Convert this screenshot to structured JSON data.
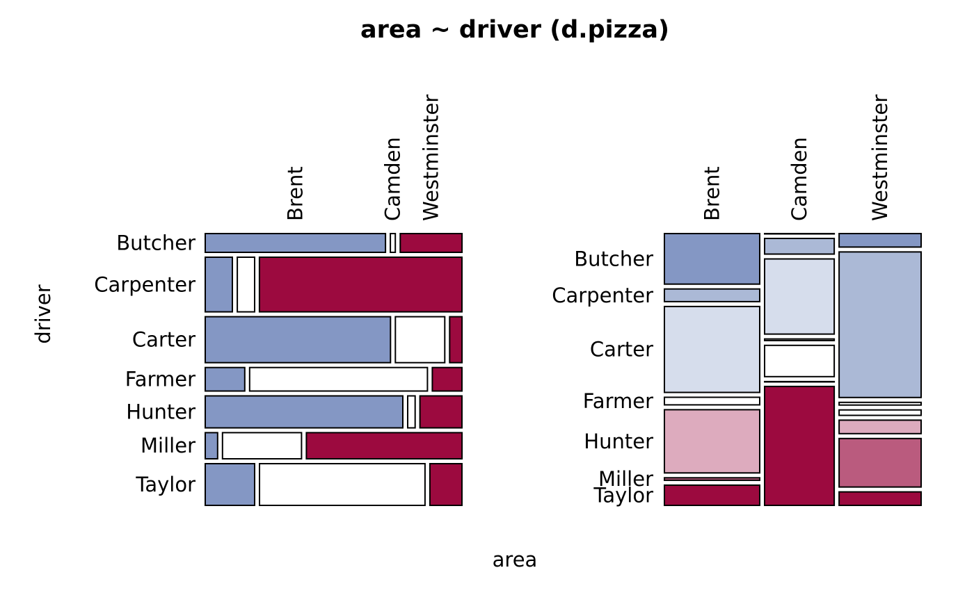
{
  "chart_data": [
    {
      "type": "mosaic",
      "title": "area ~ driver (d.pizza)",
      "xlabel": "area",
      "ylabel": "driver",
      "col_categories": [
        "Brent",
        "Camden",
        "Westminster"
      ],
      "row_categories": [
        "Butcher",
        "Carpenter",
        "Carter",
        "Farmer",
        "Hunter",
        "Miller",
        "Taylor"
      ],
      "row_shares": [
        0.071,
        0.207,
        0.174,
        0.089,
        0.121,
        0.099,
        0.158
      ],
      "panels": [
        {
          "name": "",
          "layout": "row",
          "cells": [
            [
              0.73,
              0.02,
              0.25
            ],
            [
              0.11,
              0.07,
              0.82
            ],
            [
              0.75,
              0.2,
              0.05
            ],
            [
              0.16,
              0.72,
              0.12
            ],
            [
              0.8,
              0.03,
              0.17
            ],
            [
              0.05,
              0.32,
              0.63
            ],
            [
              0.2,
              0.67,
              0.13
            ]
          ],
          "fills": [
            [
              "#8497c4",
              "#ffffff",
              "#9c0a3f"
            ],
            [
              "#8497c4",
              "#ffffff",
              "#9c0a3f"
            ],
            [
              "#8497c4",
              "#ffffff",
              "#9c0a3f"
            ],
            [
              "#8497c4",
              "#ffffff",
              "#9c0a3f"
            ],
            [
              "#8497c4",
              "#ffffff",
              "#9c0a3f"
            ],
            [
              "#8497c4",
              "#ffffff",
              "#9c0a3f"
            ],
            [
              "#8497c4",
              "#ffffff",
              "#9c0a3f"
            ]
          ]
        },
        {
          "name": "",
          "layout": "column",
          "col_shares": [
            0.386,
            0.282,
            0.332
          ],
          "cells": [
            [
              0.2,
              0.0,
              0.05
            ],
            [
              0.05,
              0.05,
              0.54
            ],
            [
              0.34,
              0.24,
              0.01
            ],
            [
              0.03,
              0.005,
              0.02
            ],
            [
              0.25,
              0.1,
              0.05
            ],
            [
              0.01,
              0.0,
              0.18
            ],
            [
              0.08,
              0.38,
              0.05
            ]
          ],
          "fills": [
            [
              "#8497c4",
              "#ffffff",
              "#8497c4"
            ],
            [
              "#abb9d6",
              "#abb9d6",
              "#abb9d6"
            ],
            [
              "#d6ddec",
              "#d6ddec",
              "#ffffff"
            ],
            [
              "#ffffff",
              "#ffffff",
              "#ffffff"
            ],
            [
              "#ddabbe",
              "#ffffff",
              "#ddabbe"
            ],
            [
              "#ba5b7e",
              "#ba5b7e",
              "#ba5b7e"
            ],
            [
              "#9c0a3f",
              "#9c0a3f",
              "#9c0a3f"
            ]
          ]
        }
      ],
      "colors": {
        "strong_blue": "#8497c4",
        "medium_blue": "#abb9d6",
        "light_blue": "#d6ddec",
        "neutral": "#ffffff",
        "light_red": "#ddabbe",
        "medium_red": "#ba5b7e",
        "strong_red": "#9c0a3f"
      }
    }
  ]
}
